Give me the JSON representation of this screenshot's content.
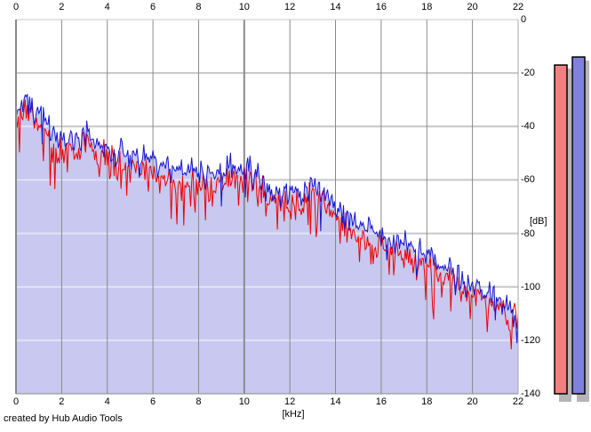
{
  "credit": "created by Hub Audio Tools",
  "chart_data": {
    "type": "line",
    "title": "",
    "xlabel": "[kHz]",
    "ylabel": "[dB]",
    "xlim": [
      0,
      22
    ],
    "ylim": [
      -140,
      0
    ],
    "x_ticks": [
      0,
      2,
      4,
      6,
      8,
      10,
      12,
      14,
      16,
      18,
      20,
      22
    ],
    "y_ticks": [
      0,
      -20,
      -40,
      -60,
      -80,
      -100,
      -120,
      -140
    ],
    "grid": true,
    "major_x_gridline": 10,
    "colors": {
      "h_gridline": "#c6c6c6",
      "h_gridline_over_fill": "#e2e2f8",
      "v_gridline": "#8a8a8a",
      "plot_border_top": "#c9c9c9",
      "plot_border_left": "#8a8a8a",
      "plot_border_right": "#a8a8a8",
      "plot_border_bottom": "#8a8a8a",
      "meter_shadow": "#b5b5b5",
      "meter_border": "#000000"
    },
    "series": [
      {
        "name": "spectrum-red",
        "color": "#f00000",
        "x_step_khz": 0.5,
        "envelope_db": [
          -38,
          -35,
          -40,
          -46,
          -50,
          -49,
          -47,
          -50,
          -52,
          -54,
          -55,
          -56,
          -57,
          -59,
          -60,
          -61,
          -61,
          -62,
          -61,
          -58,
          -59,
          -61,
          -65,
          -68,
          -70,
          -69,
          -66,
          -67,
          -73,
          -77,
          -80,
          -82,
          -85,
          -87,
          -88,
          -90,
          -92,
          -95,
          -97,
          -100,
          -102,
          -105,
          -107,
          -109,
          -112
        ]
      },
      {
        "name": "spectrum-blue",
        "color": "#1515cf",
        "fill": "#c8c8f0",
        "x_step_khz": 0.5,
        "envelope_db": [
          -34,
          -31,
          -36,
          -42,
          -46,
          -45,
          -43,
          -46,
          -48,
          -50,
          -51,
          -52,
          -53,
          -55,
          -56,
          -57,
          -57,
          -58,
          -57,
          -54,
          -55,
          -57,
          -61,
          -64,
          -66,
          -65,
          -62,
          -63,
          -69,
          -73,
          -76,
          -78,
          -81,
          -83,
          -84,
          -86,
          -88,
          -91,
          -93,
          -96,
          -99,
          -102,
          -104,
          -107,
          -110
        ]
      }
    ],
    "noise": {
      "seed": 7,
      "step_khz": 0.05,
      "shared_amp": 3,
      "series_amp": [
        6,
        5
      ],
      "dip_prob": [
        0.16,
        0.1
      ],
      "dip_amp": [
        14,
        10
      ],
      "clamp_db": [
        -137,
        -24
      ]
    },
    "meters": [
      {
        "name": "meter-red",
        "color": "#f28080",
        "value_db": -17
      },
      {
        "name": "meter-blue",
        "color": "#8080dd",
        "value_db": -14
      }
    ]
  }
}
